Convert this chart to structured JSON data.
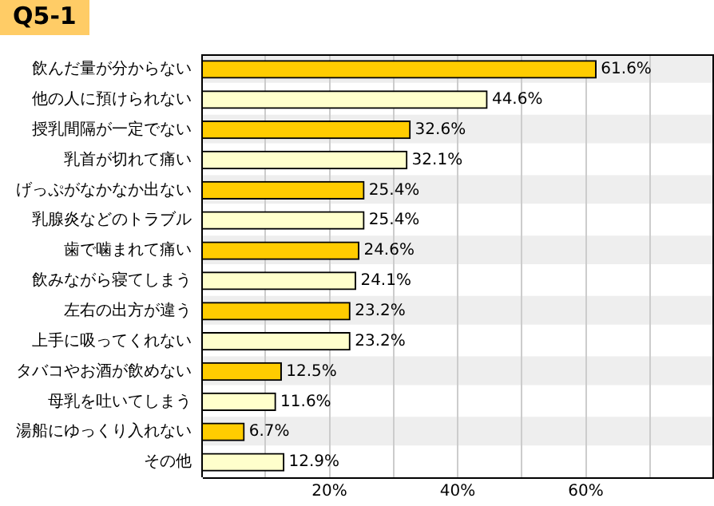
{
  "chart_data": {
    "type": "bar",
    "orientation": "horizontal",
    "title": "Q5-1",
    "categories": [
      "飲んだ量が分からない",
      "他の人に預けられない",
      "授乳間隔が一定でない",
      "乳首が切れて痛い",
      "げっぷがなかなか出ない",
      "乳腺炎などのトラブル",
      "歯で噛まれて痛い",
      "飲みながら寝てしまう",
      "左右の出方が違う",
      "上手に吸ってくれない",
      "タバコやお酒が飲めない",
      "母乳を吐いてしまう",
      "湯船にゆっくり入れない",
      "その他"
    ],
    "values": [
      61.6,
      44.6,
      32.6,
      32.1,
      25.4,
      25.4,
      24.6,
      24.1,
      23.2,
      23.2,
      12.5,
      11.6,
      6.7,
      12.9
    ],
    "value_labels": [
      "61.6%",
      "44.6%",
      "32.6%",
      "32.1%",
      "25.4%",
      "25.4%",
      "24.6%",
      "24.1%",
      "23.2%",
      "23.2%",
      "12.5%",
      "11.6%",
      "6.7%",
      "12.9%"
    ],
    "colors": [
      "#ffcc00",
      "#ffffcc",
      "#ffcc00",
      "#ffffcc",
      "#ffcc00",
      "#ffffcc",
      "#ffcc00",
      "#ffffcc",
      "#ffcc00",
      "#ffffcc",
      "#ffcc00",
      "#ffffcc",
      "#ffcc00",
      "#ffffcc"
    ],
    "xlim": [
      0,
      80
    ],
    "xticks": [
      {
        "value": 10,
        "label": null
      },
      {
        "value": 20,
        "label": "20%"
      },
      {
        "value": 30,
        "label": null
      },
      {
        "value": 40,
        "label": "40%"
      },
      {
        "value": 50,
        "label": null
      },
      {
        "value": 60,
        "label": "60%"
      },
      {
        "value": 70,
        "label": null
      }
    ],
    "grid": "x",
    "legend": false
  }
}
